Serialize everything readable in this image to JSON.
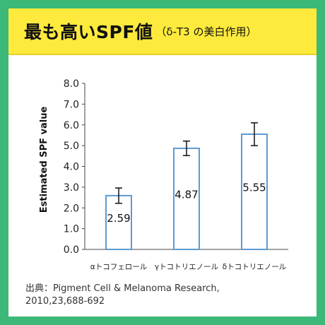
{
  "banner": {
    "title": "最も高いSPF値",
    "subtitle": "（δ-T3 の美白作用）"
  },
  "source": {
    "line1": "出典：Pigment Cell & Melanoma Research,",
    "line2": "2010,23,688-692"
  },
  "colors": {
    "background": "#3cb878",
    "banner": "#fdea3d",
    "bar_stroke": "#5b9bd5"
  },
  "chart_data": {
    "type": "bar",
    "categories": [
      "αトコフェロール",
      "γトコトリエノール",
      "δトコトリエノール"
    ],
    "values": [
      2.59,
      4.87,
      5.55
    ],
    "value_labels": [
      "2.59",
      "4.87",
      "5.55"
    ],
    "error": [
      0.37,
      0.35,
      0.55
    ],
    "ylabel": "Estimated SPF value",
    "xlabel": "",
    "ylim": [
      0,
      8
    ],
    "yticks": [
      "0.0",
      "1.0",
      "2.0",
      "3.0",
      "4.0",
      "5.0",
      "6.0",
      "7.0",
      "8.0"
    ],
    "grid": false,
    "legend": "none"
  }
}
